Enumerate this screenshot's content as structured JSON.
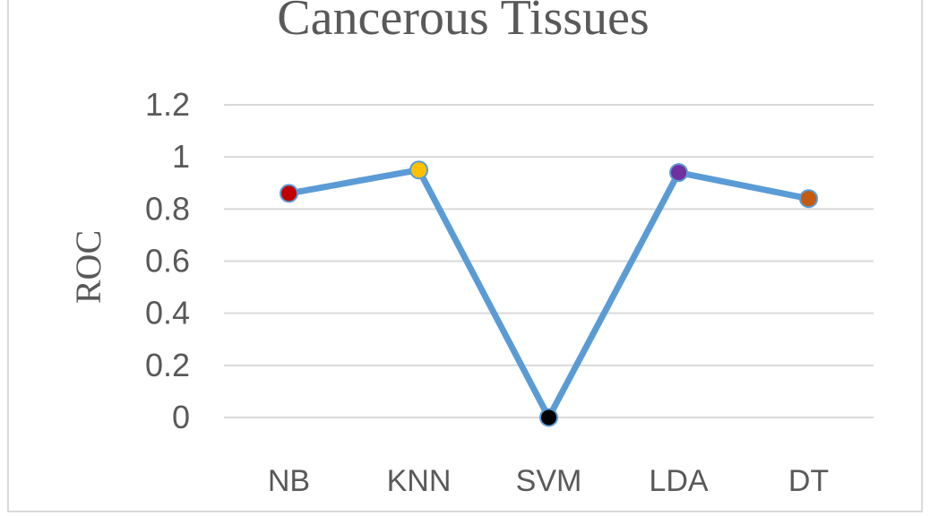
{
  "chart_data": {
    "type": "line",
    "title": "Cancerous Tissues",
    "xlabel": "",
    "ylabel": "ROC",
    "categories": [
      "NB",
      "KNN",
      "SVM",
      "LDA",
      "DT"
    ],
    "series": [
      {
        "values": [
          0.86,
          0.95,
          0.0,
          0.94,
          0.84
        ],
        "color": "#5b9bd5",
        "marker_colors": [
          "#c00000",
          "#ffc000",
          "#000000",
          "#7030a0",
          "#c55a11"
        ]
      }
    ],
    "yticks": [
      "0",
      "0.2",
      "0.4",
      "0.6",
      "0.8",
      "1",
      "1.2"
    ],
    "ylim": [
      0,
      1.2
    ],
    "grid": true,
    "legend": "none"
  }
}
